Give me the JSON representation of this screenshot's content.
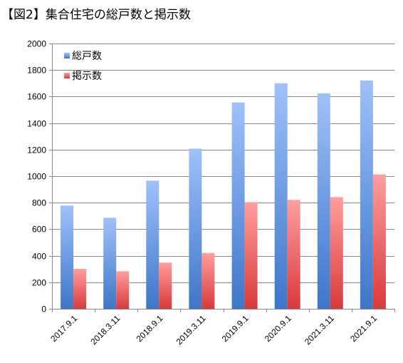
{
  "title": "【図2】集合住宅の総戸数と掲示数",
  "chart_data": {
    "type": "bar",
    "categories": [
      "2017.9.1",
      "2018.3.11",
      "2018.9.1",
      "2019.3.11",
      "2019.9.1",
      "2020.9.1",
      "2021.3.11",
      "2021.9.1"
    ],
    "series": [
      {
        "name": "総戸数",
        "values": [
          778,
          686,
          966,
          1207,
          1556,
          1700,
          1624,
          1721
        ]
      },
      {
        "name": "掲示数",
        "values": [
          301,
          283,
          348,
          421,
          804,
          821,
          842,
          1013
        ]
      }
    ],
    "yticks": [
      "0",
      "200",
      "400",
      "600",
      "800",
      "1000",
      "1200",
      "1400",
      "1600",
      "1800",
      "2000"
    ],
    "ylim": [
      0,
      2000
    ],
    "grid": true,
    "legend_position": "top-left",
    "colors": {
      "series1_top": "#9fc1fb",
      "series1_bottom": "#3d76c9",
      "series2_top": "#ff9e9e",
      "series2_bottom": "#d9393a",
      "grid": "#878787",
      "axis": "#878787"
    }
  }
}
